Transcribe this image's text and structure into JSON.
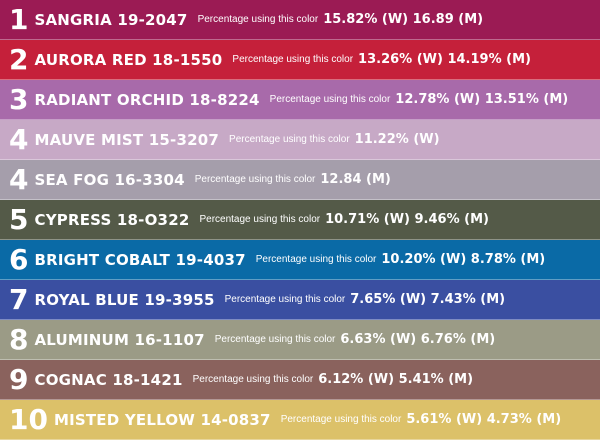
{
  "chart_data": {
    "type": "table",
    "value_label": "Percentage using this color",
    "columns": [
      "rank",
      "color",
      "women",
      "men"
    ],
    "rows": [
      {
        "rank": "1",
        "name": "SANGRIA 19-2047",
        "values": "15.82% (W) 16.89 (M)",
        "women": 15.82,
        "men": 16.89,
        "color": "#9b1b54"
      },
      {
        "rank": "2",
        "name": "AURORA RED 18-1550",
        "values": "13.26% (W) 14.19% (M)",
        "women": 13.26,
        "men": 14.19,
        "color": "#c5203a"
      },
      {
        "rank": "3",
        "name": "RADIANT ORCHID 18-8224",
        "values": "12.78% (W) 13.51% (M)",
        "women": 12.78,
        "men": 13.51,
        "color": "#a86aaa"
      },
      {
        "rank": "4",
        "name": "MAUVE MIST 15-3207",
        "values": "11.22% (W)",
        "women": 11.22,
        "men": null,
        "color": "#c7a9c6"
      },
      {
        "rank": "4",
        "name": "SEA FOG 16-3304",
        "values": "12.84 (M)",
        "women": null,
        "men": 12.84,
        "color": "#a59eab"
      },
      {
        "rank": "5",
        "name": "CYPRESS 18-O322",
        "values": "10.71% (W) 9.46% (M)",
        "women": 10.71,
        "men": 9.46,
        "color": "#545a48"
      },
      {
        "rank": "6",
        "name": "BRIGHT COBALT 19-4037",
        "values": "10.20% (W) 8.78% (M)",
        "women": 10.2,
        "men": 8.78,
        "color": "#0a6aa6"
      },
      {
        "rank": "7",
        "name": "ROYAL BLUE 19-3955",
        "values": "7.65% (W) 7.43% (M)",
        "women": 7.65,
        "men": 7.43,
        "color": "#3a4fa1"
      },
      {
        "rank": "8",
        "name": "ALUMINUM 16-1107",
        "values": "6.63% (W) 6.76% (M)",
        "women": 6.63,
        "men": 6.76,
        "color": "#9b9b86"
      },
      {
        "rank": "9",
        "name": "COGNAC 18-1421",
        "values": "6.12% (W) 5.41% (M)",
        "women": 6.12,
        "men": 5.41,
        "color": "#8a625d"
      },
      {
        "rank": "10",
        "name": "MISTED YELLOW 14-0837",
        "values": "5.61% (W) 4.73% (M)",
        "women": 5.61,
        "men": 4.73,
        "color": "#dcc169"
      }
    ]
  }
}
